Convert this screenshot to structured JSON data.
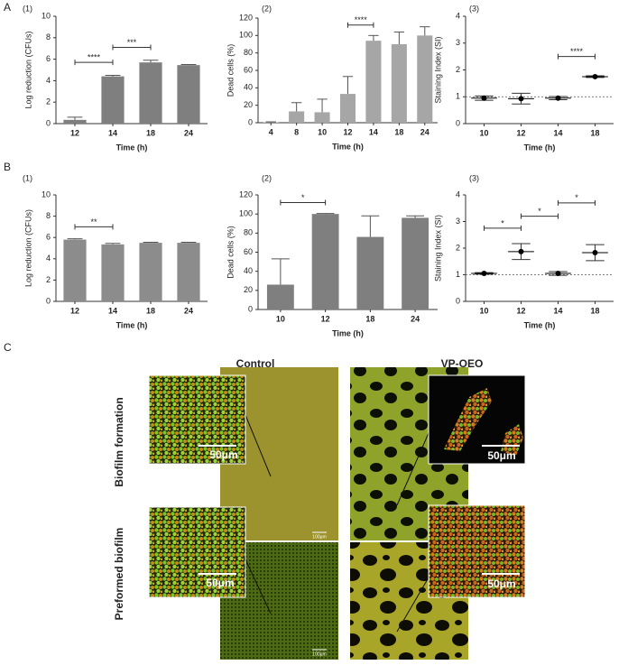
{
  "panel_labels": {
    "a": "A",
    "b": "B",
    "c": "C"
  },
  "chart_data": [
    {
      "type": "bar",
      "panel": "(1)",
      "y_label": "Log reduction (CFUs)",
      "x_label": "Time (h)",
      "color": "#7f7f7f",
      "categories": [
        "12",
        "14",
        "18",
        "24"
      ],
      "values": [
        0.35,
        4.4,
        5.7,
        5.45
      ],
      "errors": [
        0.25,
        0.1,
        0.2,
        0.05
      ],
      "ylim": [
        0,
        10
      ],
      "yticks": [
        0,
        2,
        4,
        6,
        8,
        10
      ],
      "annotations": [
        {
          "text": "****",
          "from": "12",
          "to": "14",
          "y": 5.7
        },
        {
          "text": "***",
          "from": "14",
          "to": "18",
          "y": 7.1
        }
      ]
    },
    {
      "type": "bar",
      "panel": "(2)",
      "y_label": "Dead cells (%)",
      "x_label": "Time (h)",
      "color": "#a6a6a6",
      "categories": [
        "4",
        "8",
        "10",
        "12",
        "14",
        "18",
        "24"
      ],
      "values": [
        0.5,
        13,
        12,
        33,
        94,
        90,
        100
      ],
      "errors": [
        0.5,
        10,
        15,
        20,
        6,
        14,
        10
      ],
      "ylim": [
        0,
        120
      ],
      "yticks": [
        0,
        20,
        40,
        60,
        80,
        100,
        120
      ],
      "annotations": [
        {
          "text": "****",
          "from": "12",
          "to": "14",
          "y": 112
        }
      ]
    },
    {
      "type": "dot",
      "panel": "(3)",
      "y_label": "Staining Index (SI)",
      "x_label": "Time (h)",
      "color": "#000000",
      "categories": [
        "10",
        "12",
        "14",
        "18"
      ],
      "values": [
        0.95,
        0.93,
        0.95,
        1.75
      ],
      "errors": [
        0.08,
        0.2,
        0.06,
        0.03
      ],
      "ylim": [
        0,
        4
      ],
      "yticks": [
        0,
        1,
        2,
        3,
        4
      ],
      "reference_line": 1,
      "annotations": [
        {
          "text": "****",
          "from": "14",
          "to": "18",
          "y": 2.5
        }
      ]
    },
    {
      "type": "bar",
      "panel": "(1)",
      "y_label": "Log reduction (CFUs)",
      "x_label": "Time (h)",
      "color": "#8c8c8c",
      "categories": [
        "12",
        "14",
        "18",
        "24"
      ],
      "values": [
        5.8,
        5.35,
        5.5,
        5.5
      ],
      "errors": [
        0.08,
        0.1,
        0.05,
        0.05
      ],
      "ylim": [
        0,
        10
      ],
      "yticks": [
        0,
        2,
        4,
        6,
        8,
        10
      ],
      "annotations": [
        {
          "text": "**",
          "from": "12",
          "to": "14",
          "y": 7
        }
      ]
    },
    {
      "type": "bar",
      "panel": "(2)",
      "y_label": "Dead cells (%)",
      "x_label": "Time (h)",
      "color": "#7f7f7f",
      "categories": [
        "10",
        "12",
        "18",
        "24"
      ],
      "values": [
        26,
        100,
        76,
        96
      ],
      "errors": [
        27,
        0.5,
        22,
        2
      ],
      "ylim": [
        0,
        120
      ],
      "yticks": [
        0,
        20,
        40,
        60,
        80,
        100,
        120
      ],
      "annotations": [
        {
          "text": "*",
          "from": "10",
          "to": "12",
          "y": 112
        }
      ]
    },
    {
      "type": "dot",
      "panel": "(3)",
      "y_label": "Staining Index (SI)",
      "x_label": "Time (h)",
      "color": "#000000",
      "categories": [
        "10",
        "12",
        "14",
        "18"
      ],
      "values": [
        1.05,
        1.87,
        1.05,
        1.83
      ],
      "errors": [
        0.03,
        0.3,
        0.07,
        0.3
      ],
      "ylim": [
        0,
        4
      ],
      "yticks": [
        0,
        1,
        2,
        3,
        4
      ],
      "reference_line": 1,
      "annotations": [
        {
          "text": "*",
          "from": "10",
          "to": "12",
          "y": 2.75
        },
        {
          "text": "*",
          "from": "12",
          "to": "14",
          "y": 3.2
        },
        {
          "text": "*",
          "from": "14",
          "to": "18",
          "y": 3.7
        }
      ]
    }
  ],
  "panel_c": {
    "columns": [
      "Control",
      "VP-OEO"
    ],
    "rows": [
      "Biofilm formation",
      "Preformed biofilm"
    ],
    "scale_bars": {
      "inset": "50μm",
      "overview": "100μm"
    }
  }
}
